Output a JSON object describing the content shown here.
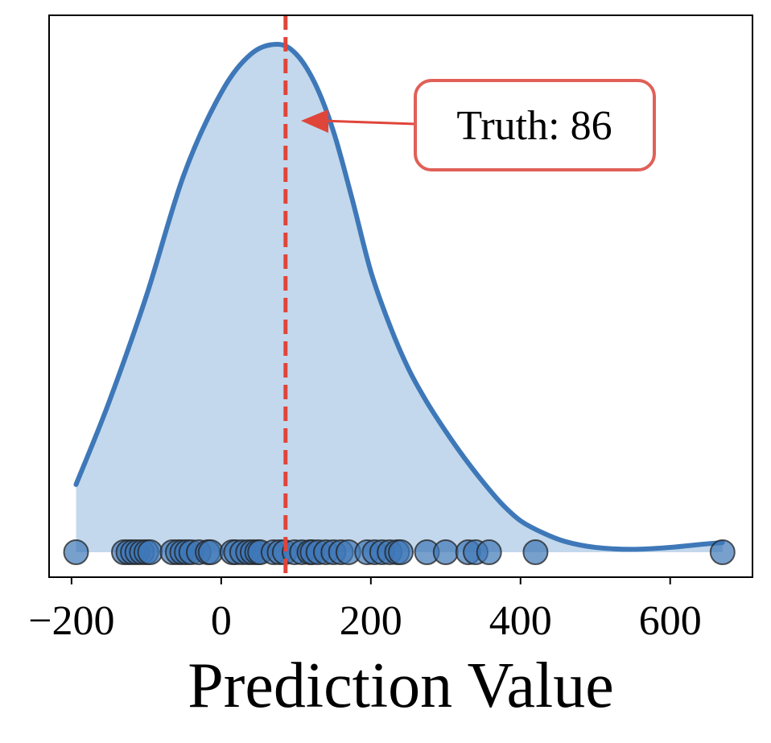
{
  "chart_data": {
    "type": "kde",
    "title": "",
    "xlabel": "Prediction Value",
    "ylabel": "",
    "xlim": [
      -230,
      710
    ],
    "xticks": [
      -200,
      0,
      200,
      400,
      600
    ],
    "xtick_labels": [
      "−200",
      "0",
      "200",
      "400",
      "600"
    ],
    "y_ticks_shown": false,
    "grid": false,
    "truth": 86,
    "annotation": "Truth: 86",
    "density_curve": [
      [
        -194,
        0.14
      ],
      [
        -150,
        0.31
      ],
      [
        -100,
        0.53
      ],
      [
        -50,
        0.78
      ],
      [
        0,
        0.95
      ],
      [
        40,
        1.03
      ],
      [
        75,
        1.05
      ],
      [
        100,
        1.03
      ],
      [
        125,
        0.97
      ],
      [
        150,
        0.87
      ],
      [
        175,
        0.73
      ],
      [
        200,
        0.58
      ],
      [
        225,
        0.47
      ],
      [
        250,
        0.38
      ],
      [
        275,
        0.31
      ],
      [
        300,
        0.25
      ],
      [
        325,
        0.195
      ],
      [
        350,
        0.145
      ],
      [
        375,
        0.1
      ],
      [
        400,
        0.065
      ],
      [
        430,
        0.04
      ],
      [
        460,
        0.022
      ],
      [
        500,
        0.01
      ],
      [
        550,
        0.006
      ],
      [
        600,
        0.01
      ],
      [
        640,
        0.016
      ],
      [
        670,
        0.02
      ]
    ],
    "predictions": [
      -194,
      -130,
      -124,
      -118,
      -112,
      -106,
      -100,
      -95,
      -65,
      -58,
      -52,
      -46,
      -40,
      -30,
      -18,
      -14,
      15,
      20,
      28,
      36,
      42,
      48,
      52,
      70,
      78,
      85,
      98,
      108,
      118,
      122,
      130,
      140,
      150,
      160,
      170,
      195,
      205,
      215,
      225,
      235,
      240,
      275,
      300,
      330,
      340,
      358,
      420,
      670
    ],
    "colors": {
      "curve": "#3e78b8",
      "fill": "#c3d8ec",
      "points": "#3e78b8",
      "truth_line": "#e0453a",
      "annotation_border": "#e06058"
    }
  }
}
